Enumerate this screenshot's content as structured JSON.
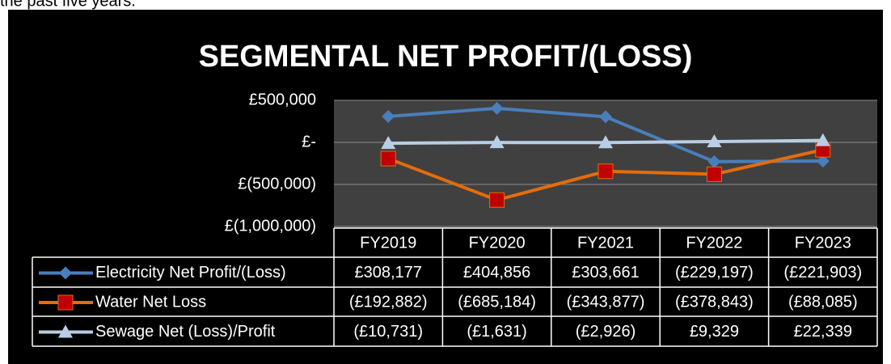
{
  "header_text": "the past five years.",
  "chart_data": {
    "type": "line",
    "title": "SEGMENTAL NET PROFIT/(LOSS)",
    "categories": [
      "FY2019",
      "FY2020",
      "FY2021",
      "FY2022",
      "FY2023"
    ],
    "series": [
      {
        "name": "Electricity Net Profit/(Loss)",
        "color": "#4a7ebb",
        "marker_color": "#4a7ebb",
        "marker": "diamond",
        "values": [
          308177,
          404856,
          303661,
          -229197,
          -221903
        ],
        "value_labels": [
          "£308,177",
          "£404,856",
          "£303,661",
          "(£229,197)",
          "(£221,903)"
        ]
      },
      {
        "name": "Water Net Loss",
        "color": "#e46c0a",
        "marker_color": "#c00000",
        "marker": "square",
        "values": [
          -192882,
          -685184,
          -343877,
          -378843,
          -88085
        ],
        "value_labels": [
          "(£192,882)",
          "(£685,184)",
          "(£343,877)",
          "(£378,843)",
          "(£88,085)"
        ]
      },
      {
        "name": "Sewage Net (Loss)/Profit",
        "color": "#b9cde5",
        "marker_color": "#b9cde5",
        "marker": "triangle",
        "values": [
          -10731,
          -1631,
          -2926,
          9329,
          22339
        ],
        "value_labels": [
          "(£10,731)",
          "(£1,631)",
          "(£2,926)",
          "£9,329",
          "£22,339"
        ]
      }
    ],
    "ylim": [
      -1000000,
      500000
    ],
    "yticks": [
      {
        "value": 500000,
        "label": "£500,000"
      },
      {
        "value": 0,
        "label": "£-"
      },
      {
        "value": -500000,
        "label": "£(500,000)"
      },
      {
        "value": -1000000,
        "label": "£(1,000,000)"
      }
    ],
    "grid": true
  }
}
